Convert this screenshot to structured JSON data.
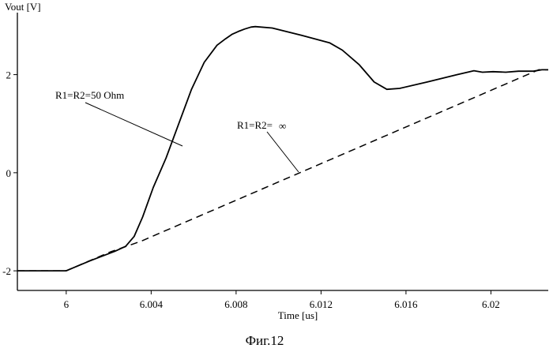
{
  "chart_data": {
    "type": "line",
    "title": "",
    "xlabel": "Time [us]",
    "ylabel": "Vout [V]",
    "xlim": [
      5.9977,
      6.0227
    ],
    "ylim": [
      -2.4,
      3.2
    ],
    "x_ticks": [
      6,
      6.004,
      6.008,
      6.012,
      6.016,
      6.02
    ],
    "x_tick_labels": [
      "6",
      "6.004",
      "6.008",
      "6.012",
      "6.016",
      "6.02"
    ],
    "y_ticks": [
      -2,
      0,
      2
    ],
    "y_tick_labels": [
      "-2",
      "0",
      "2"
    ],
    "grid": false,
    "series": [
      {
        "name": "R1=R2=50 Ohm",
        "style": "solid",
        "x": [
          5.9977,
          6.0,
          6.0011,
          6.0023,
          6.0028,
          6.0032,
          6.0036,
          6.0041,
          6.0047,
          6.0053,
          6.0059,
          6.0065,
          6.0071,
          6.0075,
          6.0078,
          6.0081,
          6.0084,
          6.0087,
          6.0089,
          6.0097,
          6.0111,
          6.0124,
          6.013,
          6.0138,
          6.0145,
          6.0151,
          6.0157,
          6.017,
          6.0184,
          6.0192,
          6.0196,
          6.0201,
          6.0207,
          6.0213,
          6.022,
          6.0224,
          6.0227
        ],
        "values": [
          -2.0,
          -2.0,
          -1.8,
          -1.6,
          -1.5,
          -1.3,
          -0.9,
          -0.3,
          0.3,
          1.0,
          1.7,
          2.25,
          2.6,
          2.73,
          2.82,
          2.88,
          2.93,
          2.97,
          2.98,
          2.95,
          2.8,
          2.65,
          2.5,
          2.2,
          1.85,
          1.7,
          1.72,
          1.85,
          2.0,
          2.08,
          2.05,
          2.06,
          2.05,
          2.07,
          2.07,
          2.1,
          2.1
        ]
      },
      {
        "name": "R1=R2=∞",
        "style": "dashed",
        "x": [
          5.9977,
          6.0,
          6.0021,
          6.0035,
          6.02225,
          6.0227
        ],
        "values": [
          -2.0,
          -2.0,
          -1.61,
          -1.4,
          2.1,
          2.1
        ]
      }
    ],
    "annotations": [
      {
        "text": "R1=R2=50 Ohm",
        "series": 0
      },
      {
        "text": "R1=R2=",
        "symbol": "∞",
        "series": 1
      }
    ],
    "caption": "Фиг.12"
  }
}
